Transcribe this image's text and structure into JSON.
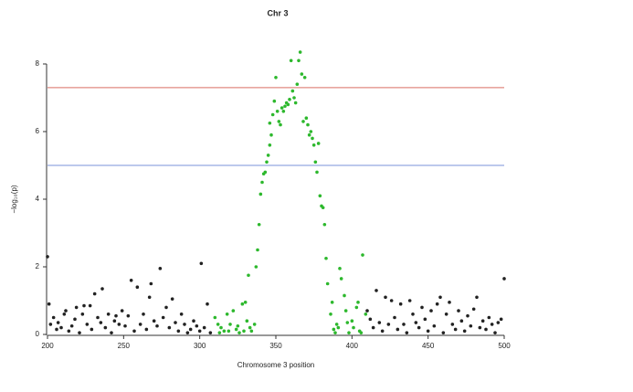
{
  "chart_data": {
    "type": "scatter",
    "title": "Chr 3",
    "x_label": "Chromosome 3 position",
    "y_label": "−log₁₀(p)",
    "xlim": [
      200,
      500
    ],
    "ylim": [
      0,
      8
    ],
    "xticks": [
      200,
      250,
      300,
      350,
      400,
      450,
      500
    ],
    "yticks": [
      0,
      2,
      4,
      6,
      8
    ],
    "hlines": [
      {
        "value": 7.3,
        "color": "#e08a80"
      },
      {
        "value": 5,
        "color": "#93a9e0"
      }
    ],
    "series": [
      {
        "color": "#222222",
        "x": [
          200,
          201,
          202,
          204,
          206,
          207,
          209,
          211,
          212,
          214,
          216,
          218,
          219,
          221,
          223,
          224,
          226,
          228,
          229,
          231,
          233,
          235,
          236,
          238,
          240,
          242,
          244,
          245,
          247,
          249,
          251,
          253,
          255,
          257,
          259,
          261,
          263,
          265,
          267,
          268,
          270,
          272,
          274,
          276,
          278,
          280,
          282,
          284,
          286,
          288,
          290,
          292,
          294,
          296,
          298,
          300,
          301,
          303,
          305,
          307,
          410,
          412,
          414,
          416,
          418,
          420,
          422,
          424,
          426,
          428,
          430,
          432,
          434,
          436,
          438,
          440,
          442,
          444,
          446,
          448,
          450,
          452,
          454,
          456,
          458,
          460,
          462,
          464,
          466,
          468,
          470,
          472,
          474,
          476,
          478,
          480,
          482,
          484,
          486,
          488,
          490,
          492,
          494,
          496,
          498,
          500
        ],
        "values": [
          2.3,
          0.9,
          0.3,
          0.5,
          0.15,
          0.35,
          0.2,
          0.6,
          0.7,
          0.1,
          0.25,
          0.45,
          0.8,
          0.05,
          0.6,
          0.85,
          0.3,
          0.85,
          0.15,
          1.2,
          0.5,
          0.35,
          1.35,
          0.2,
          0.6,
          0.05,
          0.4,
          0.55,
          0.3,
          0.7,
          0.25,
          0.55,
          1.6,
          0.1,
          1.4,
          0.3,
          0.6,
          0.15,
          1.1,
          1.5,
          0.4,
          0.25,
          1.95,
          0.5,
          0.8,
          0.2,
          1.05,
          0.35,
          0.1,
          0.6,
          0.3,
          0.05,
          0.15,
          0.4,
          0.25,
          0.1,
          2.1,
          0.2,
          0.9,
          0.05,
          0.7,
          0.45,
          0.2,
          1.3,
          0.35,
          0.1,
          1.1,
          0.3,
          1.0,
          0.5,
          0.15,
          0.9,
          0.3,
          0.05,
          1.0,
          0.6,
          0.35,
          0.2,
          0.8,
          0.45,
          0.1,
          0.7,
          0.25,
          0.9,
          1.1,
          0.05,
          0.6,
          0.95,
          0.3,
          0.15,
          0.7,
          0.4,
          0.1,
          0.55,
          0.25,
          0.75,
          1.1,
          0.2,
          0.4,
          0.15,
          0.5,
          0.3,
          0.05,
          0.35,
          0.45,
          1.65
        ]
      },
      {
        "color": "#2db82d",
        "x": [
          310,
          312,
          313,
          314,
          316,
          318,
          319,
          320,
          322,
          324,
          325,
          326,
          328,
          329,
          330,
          331,
          333,
          334,
          336,
          332,
          337,
          338,
          339,
          340,
          341,
          342,
          343,
          344,
          345,
          346,
          347,
          346,
          348,
          349,
          350,
          351,
          352,
          353,
          354,
          355,
          356,
          357,
          358,
          359,
          360,
          361,
          362,
          363,
          364,
          365,
          366,
          367,
          368,
          369,
          370,
          371,
          372,
          373,
          374,
          375,
          376,
          377,
          378,
          379,
          380,
          381,
          382,
          383,
          384,
          386,
          387,
          388,
          389,
          390,
          391,
          392,
          393,
          395,
          396,
          397,
          398,
          400,
          401,
          403,
          404,
          405,
          406,
          407,
          409
        ],
        "values": [
          0.5,
          0.3,
          0.05,
          0.2,
          0.1,
          0.6,
          0.1,
          0.3,
          0.7,
          0.15,
          0.25,
          0.05,
          0.9,
          0.1,
          0.95,
          0.4,
          0.2,
          0.1,
          0.3,
          1.75,
          2.0,
          2.5,
          3.25,
          4.15,
          4.5,
          4.75,
          4.8,
          5.1,
          5.3,
          5.6,
          5.9,
          6.25,
          6.5,
          6.9,
          7.6,
          6.6,
          6.3,
          6.2,
          6.7,
          6.6,
          6.75,
          6.85,
          6.8,
          6.95,
          8.1,
          7.2,
          7.0,
          6.85,
          7.4,
          8.1,
          8.35,
          7.7,
          6.3,
          7.6,
          6.4,
          6.2,
          5.9,
          6.0,
          5.8,
          5.6,
          5.1,
          4.8,
          5.65,
          4.1,
          3.8,
          3.75,
          3.25,
          2.25,
          1.5,
          0.6,
          0.95,
          0.15,
          0.05,
          0.3,
          0.2,
          1.95,
          1.65,
          1.15,
          0.7,
          0.35,
          0.05,
          0.4,
          0.2,
          0.8,
          0.95,
          0.1,
          0.05,
          2.35,
          0.6
        ]
      }
    ]
  }
}
